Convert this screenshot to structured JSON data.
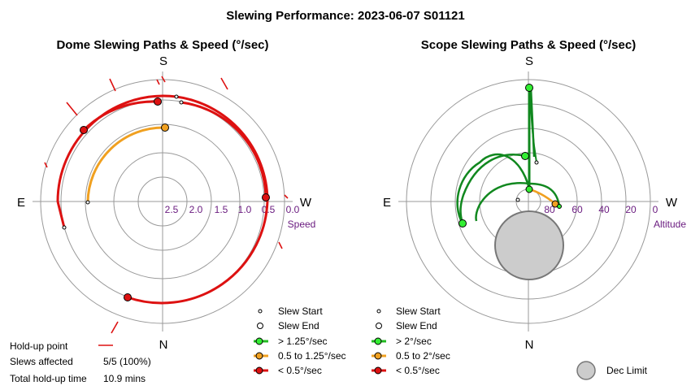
{
  "title": "Slewing Performance: 2023-06-07 S01121",
  "dome": {
    "title": "Dome Slewing Paths & Speed (°/sec)",
    "cardinals": {
      "top": "S",
      "bottom": "N",
      "left": "E",
      "right": "W"
    },
    "ticks": [
      "2.5",
      "2.0",
      "1.5",
      "1.0",
      "0.5",
      "0.0"
    ],
    "unit_label": "Speed",
    "legend": [
      {
        "label": "Slew Start",
        "kind": "start"
      },
      {
        "label": "Slew End",
        "kind": "end"
      },
      {
        "label": "> 1.25°/sec",
        "kind": "line",
        "color": "#22bb22"
      },
      {
        "label": "0.5 to 1.25°/sec",
        "kind": "line",
        "color": "#f0a020"
      },
      {
        "label": "< 0.5°/sec",
        "kind": "line",
        "color": "#dd1111"
      }
    ],
    "holdup": {
      "label": "Hold-up point",
      "slews_label": "Slews affected",
      "slews_value": "5/5 (100%)",
      "time_label": "Total hold-up time",
      "time_value": "10.9 mins"
    }
  },
  "scope": {
    "title": "Scope Slewing Paths & Speed (°/sec)",
    "cardinals": {
      "top": "S",
      "bottom": "N",
      "left": "E",
      "right": "W"
    },
    "ticks": [
      "80",
      "60",
      "40",
      "20",
      "0"
    ],
    "unit_label": "Altitude",
    "legend": [
      {
        "label": "Slew Start",
        "kind": "start"
      },
      {
        "label": "Slew End",
        "kind": "end"
      },
      {
        "label": "> 2°/sec",
        "kind": "line",
        "color": "#22bb22"
      },
      {
        "label": "0.5 to 2°/sec",
        "kind": "line",
        "color": "#f0a020"
      },
      {
        "label": "< 0.5°/sec",
        "kind": "line",
        "color": "#dd1111"
      }
    ],
    "dec_limit_label": "Dec Limit"
  },
  "colors": {
    "fast": "#22bb22",
    "mid": "#f0a020",
    "slow": "#dd1111",
    "scope_path": "#11881f",
    "dec_limit": "#cccccc"
  },
  "chart_data": [
    {
      "type": "polar",
      "title": "Dome Slewing Paths & Speed (°/sec)",
      "radial_axis": {
        "label": "Speed",
        "ticks": [
          2.5,
          2.0,
          1.5,
          1.0,
          0.5,
          0.0
        ]
      },
      "angular_axis": {
        "top": "S",
        "right": "W",
        "bottom": "N",
        "left": "E"
      },
      "series": [
        {
          "speed_band": "< 0.5°/sec",
          "azimuth_start": 0,
          "azimuth_end": 90,
          "radial": 0.05
        },
        {
          "speed_band": "< 0.5°/sec",
          "azimuth_start": 40,
          "azimuth_end": -100,
          "radial": 0.4
        },
        {
          "speed_band": "< 0.5°/sec",
          "azimuth_start": -20,
          "azimuth_end": -115,
          "radial": 0.15
        },
        {
          "speed_band": "< 0.5°/sec",
          "azimuth_start": -155,
          "azimuth_end": -95,
          "radial": 0.25
        },
        {
          "speed_band": "0.5 to 1.25°/sec",
          "azimuth_start": 0,
          "azimuth_end": -90,
          "radial": 0.75
        }
      ],
      "slews_affected": "5/5 (100%)",
      "total_holdup_time": "10.9 mins"
    },
    {
      "type": "polar",
      "title": "Scope Slewing Paths & Speed (°/sec)",
      "radial_axis": {
        "label": "Altitude",
        "ticks": [
          80,
          60,
          40,
          20,
          0
        ]
      },
      "angular_axis": {
        "top": "S",
        "right": "W",
        "bottom": "N",
        "left": "E"
      },
      "series": [
        {
          "speed_band": "> 2°/sec",
          "from": {
            "alt": 90,
            "az": 0
          },
          "to": {
            "alt": 26,
            "az": 0
          }
        },
        {
          "speed_band": "> 2°/sec",
          "from": {
            "alt": 47,
            "az": 353
          },
          "to": {
            "alt": 60,
            "az": 6
          }
        },
        {
          "speed_band": "> 2°/sec",
          "from": {
            "alt": 75,
            "az": 0
          },
          "to": {
            "alt": 81,
            "az": 92
          }
        },
        {
          "speed_band": "0.5 to 2°/sec",
          "from": {
            "alt": 88,
            "az": 350
          },
          "to": {
            "alt": 76,
            "az": 95
          }
        }
      ],
      "dec_limit": {
        "center_alt": 69,
        "center_az": 180
      }
    }
  ]
}
